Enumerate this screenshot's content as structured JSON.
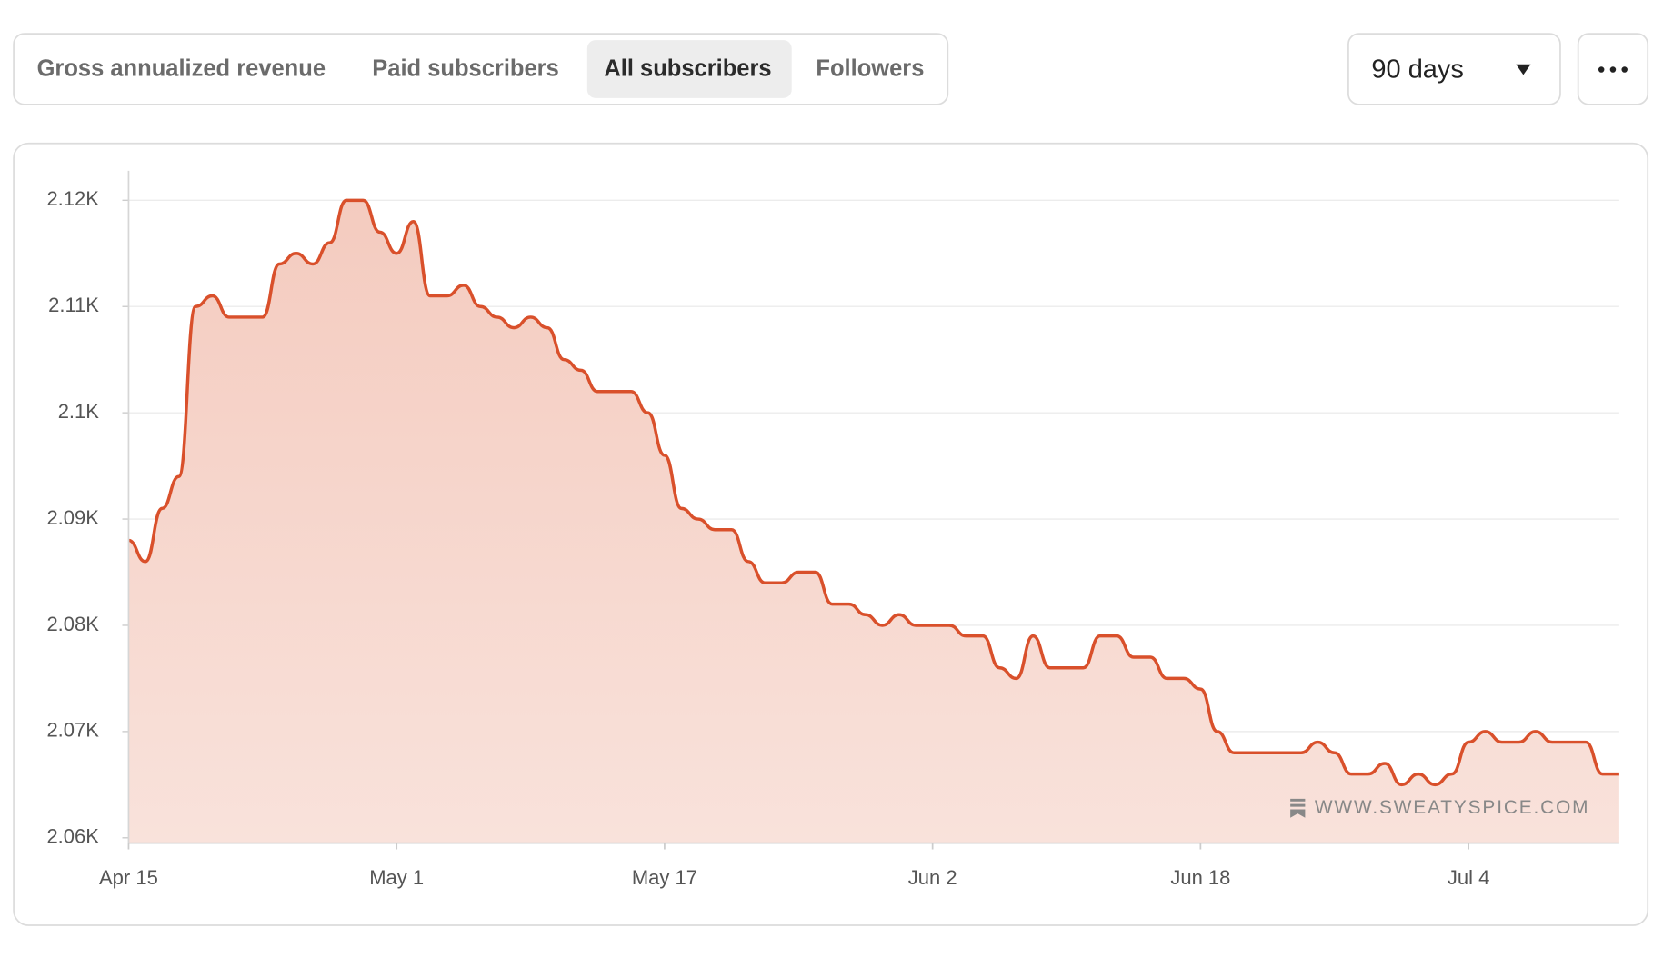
{
  "tabs": [
    "Gross annualized revenue",
    "Paid subscribers",
    "All subscribers",
    "Followers"
  ],
  "active_tab": 2,
  "range_selector": "90 days",
  "chart_data": {
    "type": "area",
    "categories": [
      "Apr 15",
      null,
      null,
      null,
      null,
      null,
      null,
      null,
      null,
      null,
      null,
      null,
      null,
      null,
      null,
      null,
      "May 1",
      null,
      null,
      null,
      null,
      null,
      null,
      null,
      null,
      null,
      null,
      null,
      null,
      null,
      null,
      null,
      "May 17",
      null,
      null,
      null,
      null,
      null,
      null,
      null,
      null,
      null,
      null,
      null,
      null,
      null,
      null,
      null,
      "Jun 2",
      null,
      null,
      null,
      null,
      null,
      null,
      null,
      null,
      null,
      null,
      null,
      null,
      null,
      null,
      null,
      "Jun 18",
      null,
      null,
      null,
      null,
      null,
      null,
      null,
      null,
      null,
      null,
      null,
      null,
      null,
      null,
      null,
      "Jul 4",
      null,
      null,
      null,
      null,
      null,
      null,
      null,
      null,
      null
    ],
    "values": [
      2088,
      2086,
      2091,
      2094,
      2110,
      2111,
      2109,
      2109,
      2109,
      2114,
      2115,
      2114,
      2116,
      2120,
      2120,
      2117,
      2115,
      2118,
      2111,
      2111,
      2112,
      2110,
      2109,
      2108,
      2109,
      2108,
      2105,
      2104,
      2102,
      2102,
      2102,
      2100,
      2096,
      2091,
      2090,
      2089,
      2089,
      2086,
      2084,
      2084,
      2085,
      2085,
      2082,
      2082,
      2081,
      2080,
      2081,
      2080,
      2080,
      2080,
      2079,
      2079,
      2076,
      2075,
      2079,
      2076,
      2076,
      2076,
      2079,
      2079,
      2077,
      2077,
      2075,
      2075,
      2074,
      2070,
      2068,
      2068,
      2068,
      2068,
      2068,
      2069,
      2068,
      2066,
      2066,
      2067,
      2065,
      2066,
      2065,
      2066,
      2069,
      2070,
      2069,
      2069,
      2070,
      2069,
      2069,
      2069,
      2066,
      2066
    ],
    "color": "#d9502b",
    "ylim": [
      2060,
      2120
    ],
    "yticks": [
      {
        "value": 2060,
        "label": "2.06K"
      },
      {
        "value": 2070,
        "label": "2.07K"
      },
      {
        "value": 2080,
        "label": "2.08K"
      },
      {
        "value": 2090,
        "label": "2.09K"
      },
      {
        "value": 2100,
        "label": "2.1K"
      },
      {
        "value": 2110,
        "label": "2.11K"
      },
      {
        "value": 2120,
        "label": "2.12K"
      }
    ],
    "grid": true,
    "watermark": "WWW.SWEATYSPICE.COM"
  }
}
